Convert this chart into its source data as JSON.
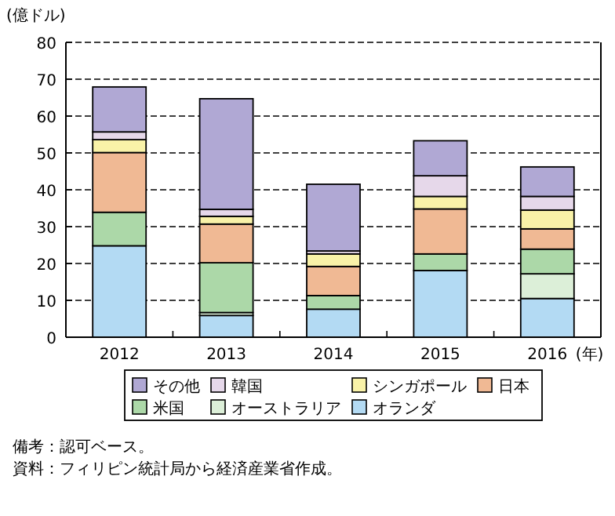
{
  "chart_data": {
    "type": "bar",
    "stacked": true,
    "categories": [
      "2012",
      "2013",
      "2014",
      "2015",
      "2016"
    ],
    "xlabel": "(年)",
    "ylabel": "(億ドル)",
    "ylim": [
      0,
      80
    ],
    "yticks": [
      0,
      10,
      20,
      30,
      40,
      50,
      60,
      70,
      80
    ],
    "grid": "y",
    "legend": "bottom",
    "series": [
      {
        "name": "オランダ",
        "color": "#b3daf3",
        "values": [
          24.8,
          5.9,
          7.6,
          18.1,
          10.5
        ]
      },
      {
        "name": "オーストラリア",
        "color": "#dcefd8",
        "values": [
          null,
          0.8,
          null,
          null,
          6.7
        ]
      },
      {
        "name": "米国",
        "color": "#acd8a8",
        "values": [
          9.1,
          13.5,
          3.7,
          4.5,
          6.7
        ]
      },
      {
        "name": "日本",
        "color": "#f0b994",
        "values": [
          16.2,
          10.5,
          7.9,
          12.2,
          5.5
        ]
      },
      {
        "name": "シンガポール",
        "color": "#f9f2a8",
        "values": [
          3.5,
          2.1,
          3.4,
          3.4,
          5.1
        ]
      },
      {
        "name": "韓国",
        "color": "#e6d8ea",
        "values": [
          2.1,
          1.9,
          0.8,
          5.6,
          3.7
        ]
      },
      {
        "name": "その他",
        "color": "#b0a8d4",
        "values": [
          12.2,
          30.0,
          18.1,
          9.5,
          8.0
        ]
      }
    ],
    "annotations": [
      "備考：認可ベース。",
      "資料：フィリピン統計局から経済産業省作成。"
    ]
  }
}
